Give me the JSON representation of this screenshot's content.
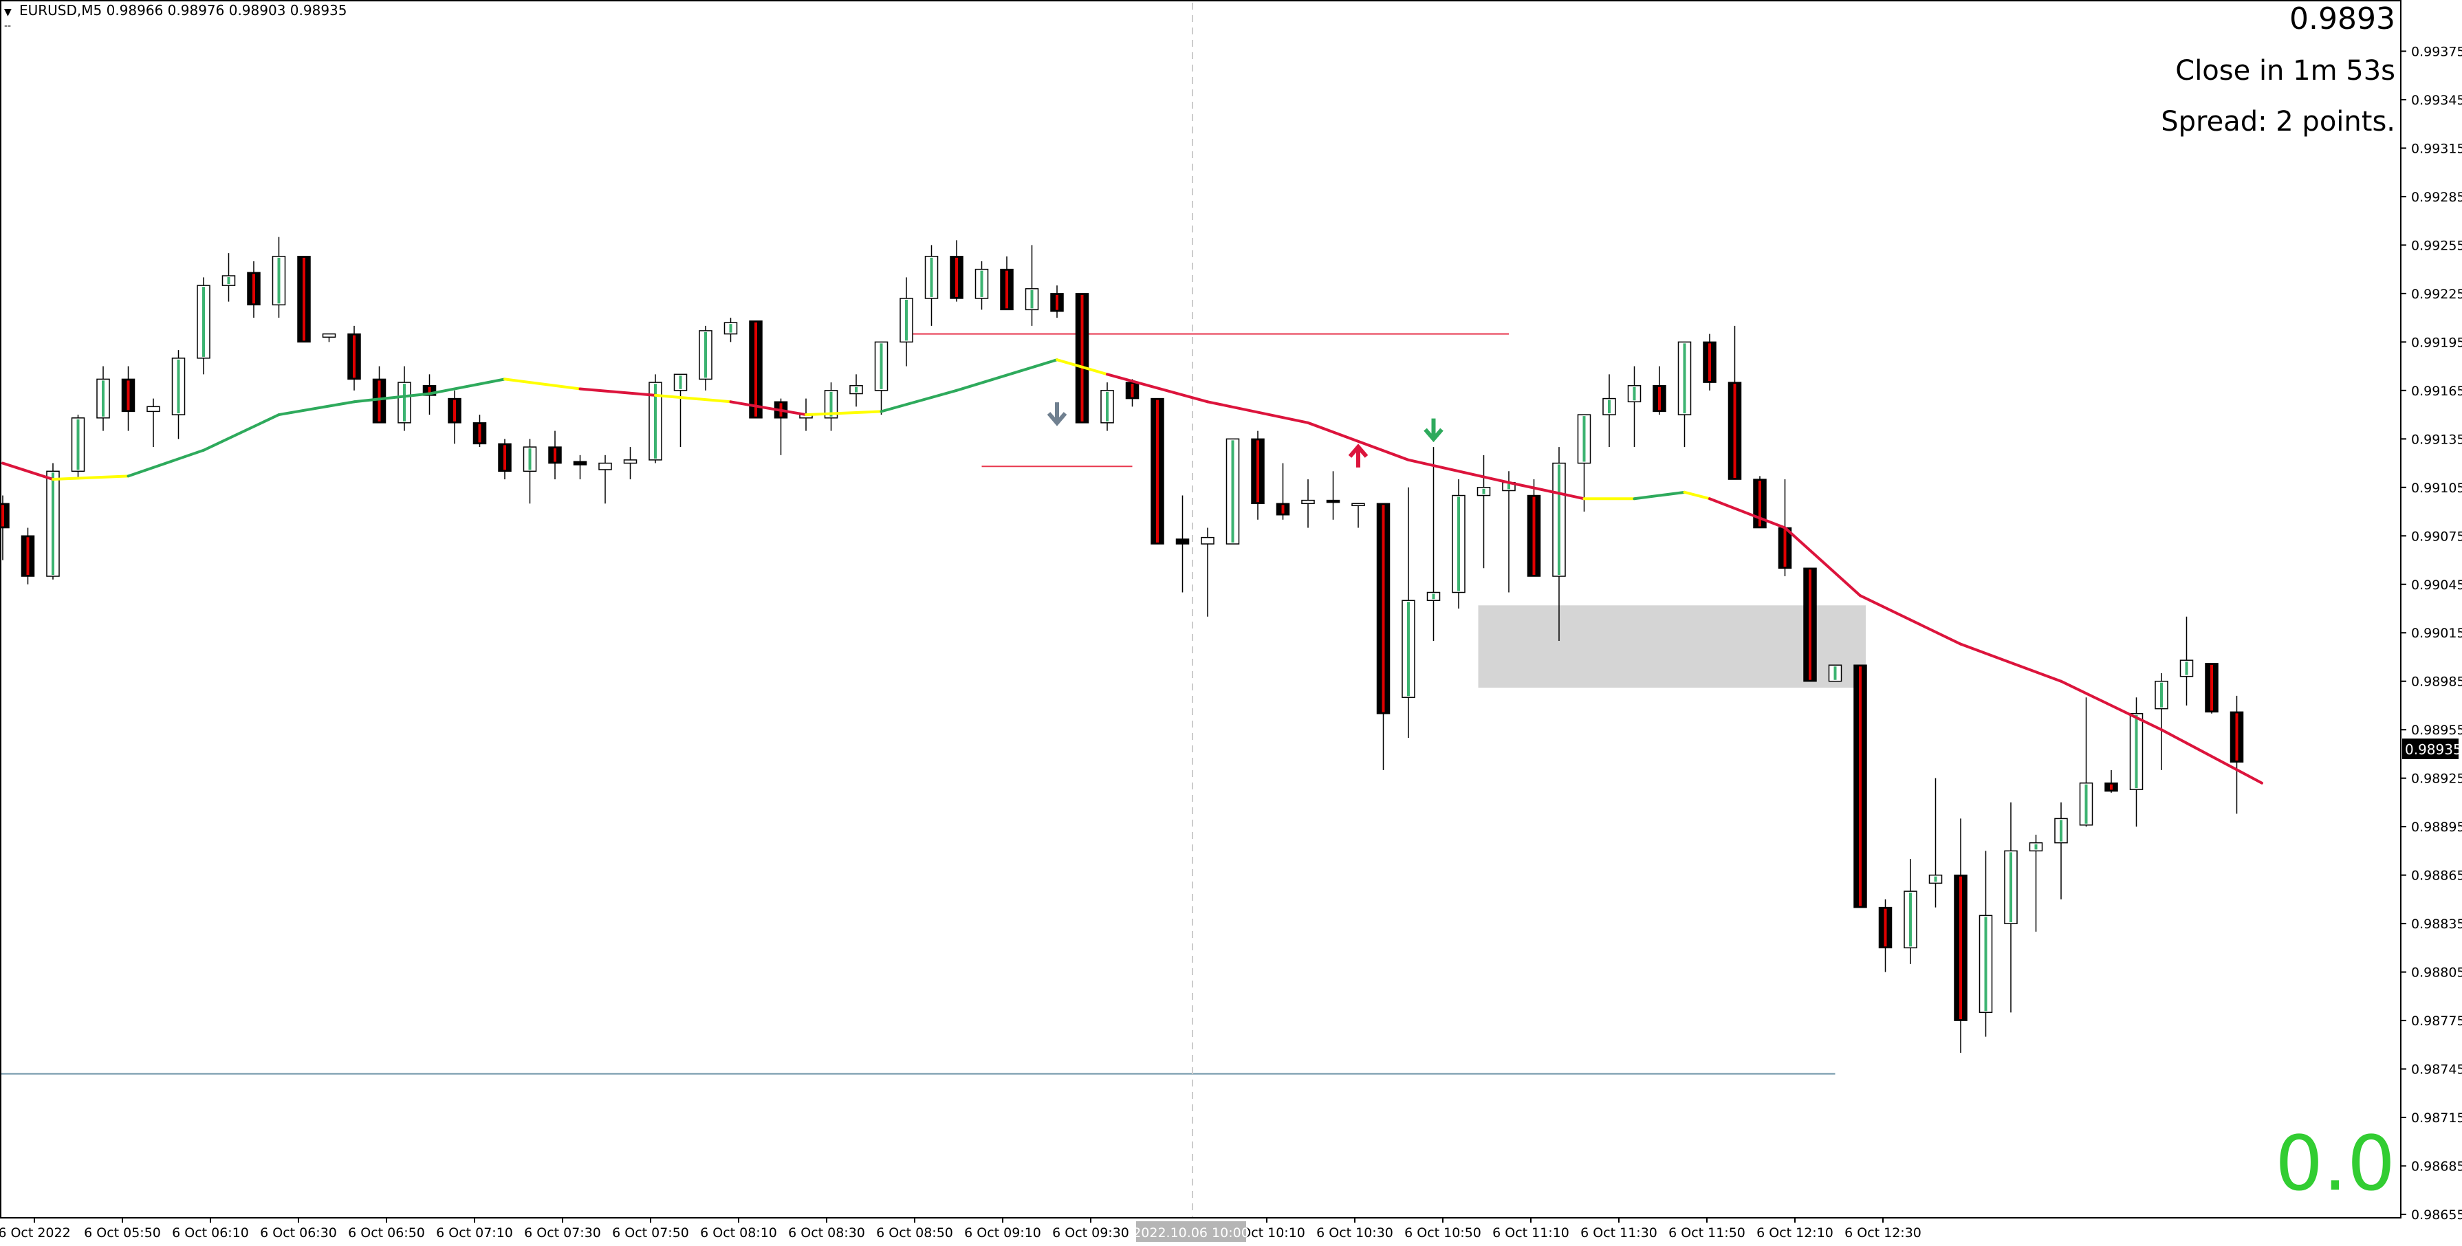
{
  "symbol_info": {
    "arrow": "▼",
    "text": "EURUSD,M5  0.98966 0.98976 0.98903 0.98935",
    "subtitle": "--"
  },
  "overlay": {
    "price": "0.9893",
    "close_timer": "Close in 1m 53s",
    "spread": "Spread: 2 points.",
    "big_value": "0.0"
  },
  "current_price_label": "0.98935",
  "crosshair_time_label": "2022.10.06 10:00",
  "colors": {
    "bull_body": "#ffffff",
    "bull_outline": "#3cb371",
    "bear_body": "#000000",
    "bear_line": "#e00000",
    "ma_up": "#2eaa5c",
    "ma_down": "#dc143c",
    "ma_flat": "#ffff00",
    "zone": "#d3d3d3",
    "support_line": "#6f95a8",
    "big_value": "#32cd32"
  },
  "chart_data": {
    "type": "candlestick",
    "y_range": [
      0.98655,
      0.99405
    ],
    "y_ticks": [
      "0.99375",
      "0.99345",
      "0.99315",
      "0.99285",
      "0.99255",
      "0.99225",
      "0.99195",
      "0.99165",
      "0.99135",
      "0.99105",
      "0.99075",
      "0.99045",
      "0.99015",
      "0.98985",
      "0.98955",
      "0.98925",
      "0.98895",
      "0.98865",
      "0.98835",
      "0.98805",
      "0.98775",
      "0.98745",
      "0.98715",
      "0.98685",
      "0.98655"
    ],
    "x_tick_labels": [
      "6 Oct 2022",
      "6 Oct 05:50",
      "6 Oct 06:10",
      "6 Oct 06:30",
      "6 Oct 06:50",
      "6 Oct 07:10",
      "6 Oct 07:30",
      "6 Oct 07:50",
      "6 Oct 08:10",
      "6 Oct 08:30",
      "6 Oct 08:50",
      "6 Oct 09:10",
      "6 Oct 09:30",
      "6 Oct 10:10",
      "6 Oct 10:30",
      "6 Oct 10:50",
      "6 Oct 11:10",
      "6 Oct 11:30",
      "6 Oct 11:50",
      "6 Oct 12:10",
      "6 Oct 12:30"
    ],
    "candles": [
      {
        "o": 0.99095,
        "h": 0.991,
        "l": 0.9906,
        "c": 0.9908
      },
      {
        "o": 0.99075,
        "h": 0.9908,
        "l": 0.99045,
        "c": 0.9905
      },
      {
        "o": 0.9905,
        "h": 0.9912,
        "l": 0.99048,
        "c": 0.99115
      },
      {
        "o": 0.99115,
        "h": 0.9915,
        "l": 0.9911,
        "c": 0.99148
      },
      {
        "o": 0.99148,
        "h": 0.9918,
        "l": 0.9914,
        "c": 0.99172
      },
      {
        "o": 0.99172,
        "h": 0.9918,
        "l": 0.9914,
        "c": 0.99152
      },
      {
        "o": 0.99152,
        "h": 0.9916,
        "l": 0.9913,
        "c": 0.99155
      },
      {
        "o": 0.9915,
        "h": 0.9919,
        "l": 0.99135,
        "c": 0.99185
      },
      {
        "o": 0.99185,
        "h": 0.99235,
        "l": 0.99175,
        "c": 0.9923
      },
      {
        "o": 0.9923,
        "h": 0.9925,
        "l": 0.9922,
        "c": 0.99236
      },
      {
        "o": 0.99238,
        "h": 0.99245,
        "l": 0.9921,
        "c": 0.99218
      },
      {
        "o": 0.99218,
        "h": 0.9926,
        "l": 0.9921,
        "c": 0.99248
      },
      {
        "o": 0.99248,
        "h": 0.99248,
        "l": 0.99195,
        "c": 0.99195
      },
      {
        "o": 0.99198,
        "h": 0.992,
        "l": 0.99195,
        "c": 0.992
      },
      {
        "o": 0.992,
        "h": 0.99205,
        "l": 0.99165,
        "c": 0.99172
      },
      {
        "o": 0.99172,
        "h": 0.9918,
        "l": 0.99145,
        "c": 0.99145
      },
      {
        "o": 0.99145,
        "h": 0.9918,
        "l": 0.9914,
        "c": 0.9917
      },
      {
        "o": 0.99168,
        "h": 0.99175,
        "l": 0.9915,
        "c": 0.99162
      },
      {
        "o": 0.9916,
        "h": 0.99165,
        "l": 0.99132,
        "c": 0.99145
      },
      {
        "o": 0.99145,
        "h": 0.9915,
        "l": 0.9913,
        "c": 0.99132
      },
      {
        "o": 0.99132,
        "h": 0.99135,
        "l": 0.9911,
        "c": 0.99115
      },
      {
        "o": 0.99115,
        "h": 0.99135,
        "l": 0.99095,
        "c": 0.9913
      },
      {
        "o": 0.9913,
        "h": 0.9914,
        "l": 0.9911,
        "c": 0.9912
      },
      {
        "o": 0.99121,
        "h": 0.99125,
        "l": 0.9911,
        "c": 0.99119
      },
      {
        "o": 0.99116,
        "h": 0.99125,
        "l": 0.99095,
        "c": 0.9912
      },
      {
        "o": 0.9912,
        "h": 0.9913,
        "l": 0.9911,
        "c": 0.99122
      },
      {
        "o": 0.99122,
        "h": 0.99175,
        "l": 0.9912,
        "c": 0.9917
      },
      {
        "o": 0.99165,
        "h": 0.99175,
        "l": 0.9913,
        "c": 0.99175
      },
      {
        "o": 0.99172,
        "h": 0.99205,
        "l": 0.99165,
        "c": 0.99202
      },
      {
        "o": 0.992,
        "h": 0.9921,
        "l": 0.99195,
        "c": 0.99207
      },
      {
        "o": 0.99208,
        "h": 0.99208,
        "l": 0.99148,
        "c": 0.99148
      },
      {
        "o": 0.99158,
        "h": 0.9916,
        "l": 0.99125,
        "c": 0.99148
      },
      {
        "o": 0.99148,
        "h": 0.9916,
        "l": 0.9914,
        "c": 0.9915
      },
      {
        "o": 0.99148,
        "h": 0.9917,
        "l": 0.9914,
        "c": 0.99165
      },
      {
        "o": 0.99163,
        "h": 0.99175,
        "l": 0.99155,
        "c": 0.99168
      },
      {
        "o": 0.99165,
        "h": 0.99195,
        "l": 0.9915,
        "c": 0.99195
      },
      {
        "o": 0.99195,
        "h": 0.99235,
        "l": 0.9918,
        "c": 0.99222
      },
      {
        "o": 0.99222,
        "h": 0.99255,
        "l": 0.99205,
        "c": 0.99248
      },
      {
        "o": 0.99248,
        "h": 0.99258,
        "l": 0.9922,
        "c": 0.99222
      },
      {
        "o": 0.99222,
        "h": 0.99245,
        "l": 0.99215,
        "c": 0.9924
      },
      {
        "o": 0.9924,
        "h": 0.99248,
        "l": 0.99215,
        "c": 0.99215
      },
      {
        "o": 0.99215,
        "h": 0.99255,
        "l": 0.99205,
        "c": 0.99228
      },
      {
        "o": 0.99225,
        "h": 0.9923,
        "l": 0.9921,
        "c": 0.99214
      },
      {
        "o": 0.99225,
        "h": 0.99225,
        "l": 0.99145,
        "c": 0.99145
      },
      {
        "o": 0.99145,
        "h": 0.9917,
        "l": 0.9914,
        "c": 0.99165
      },
      {
        "o": 0.9917,
        "h": 0.99172,
        "l": 0.99155,
        "c": 0.9916
      },
      {
        "o": 0.9916,
        "h": 0.9916,
        "l": 0.9907,
        "c": 0.9907
      },
      {
        "o": 0.99073,
        "h": 0.991,
        "l": 0.9904,
        "c": 0.9907
      },
      {
        "o": 0.9907,
        "h": 0.9908,
        "l": 0.99025,
        "c": 0.99074
      },
      {
        "o": 0.9907,
        "h": 0.99135,
        "l": 0.9907,
        "c": 0.99135
      },
      {
        "o": 0.99135,
        "h": 0.9914,
        "l": 0.99085,
        "c": 0.99095
      },
      {
        "o": 0.99095,
        "h": 0.9912,
        "l": 0.99085,
        "c": 0.99088
      },
      {
        "o": 0.99095,
        "h": 0.9911,
        "l": 0.9908,
        "c": 0.99097
      },
      {
        "o": 0.99097,
        "h": 0.99115,
        "l": 0.99085,
        "c": 0.99096
      },
      {
        "o": 0.99095,
        "h": 0.99095,
        "l": 0.9908,
        "c": 0.99095
      },
      {
        "o": 0.99095,
        "h": 0.99095,
        "l": 0.9893,
        "c": 0.98965
      },
      {
        "o": 0.98975,
        "h": 0.99105,
        "l": 0.9895,
        "c": 0.99035
      },
      {
        "o": 0.99035,
        "h": 0.9913,
        "l": 0.9901,
        "c": 0.9904
      },
      {
        "o": 0.9904,
        "h": 0.9911,
        "l": 0.9903,
        "c": 0.991
      },
      {
        "o": 0.991,
        "h": 0.99125,
        "l": 0.99055,
        "c": 0.99105
      },
      {
        "o": 0.99103,
        "h": 0.99115,
        "l": 0.9904,
        "c": 0.99108
      },
      {
        "o": 0.991,
        "h": 0.9911,
        "l": 0.9905,
        "c": 0.9905
      },
      {
        "o": 0.9905,
        "h": 0.9913,
        "l": 0.9901,
        "c": 0.9912
      },
      {
        "o": 0.9912,
        "h": 0.9915,
        "l": 0.9909,
        "c": 0.9915
      },
      {
        "o": 0.9915,
        "h": 0.99175,
        "l": 0.9913,
        "c": 0.9916
      },
      {
        "o": 0.99158,
        "h": 0.9918,
        "l": 0.9913,
        "c": 0.99168
      },
      {
        "o": 0.99168,
        "h": 0.9918,
        "l": 0.9915,
        "c": 0.99152
      },
      {
        "o": 0.9915,
        "h": 0.99195,
        "l": 0.9913,
        "c": 0.99195
      },
      {
        "o": 0.99195,
        "h": 0.992,
        "l": 0.99165,
        "c": 0.9917
      },
      {
        "o": 0.9917,
        "h": 0.99205,
        "l": 0.9911,
        "c": 0.9911
      },
      {
        "o": 0.9911,
        "h": 0.99112,
        "l": 0.9908,
        "c": 0.9908
      },
      {
        "o": 0.9908,
        "h": 0.9911,
        "l": 0.9905,
        "c": 0.99055
      },
      {
        "o": 0.99055,
        "h": 0.99055,
        "l": 0.98985,
        "c": 0.98985
      },
      {
        "o": 0.98985,
        "h": 0.98995,
        "l": 0.98985,
        "c": 0.98995
      },
      {
        "o": 0.98995,
        "h": 0.98995,
        "l": 0.98845,
        "c": 0.98845
      },
      {
        "o": 0.98845,
        "h": 0.9885,
        "l": 0.98805,
        "c": 0.9882
      },
      {
        "o": 0.9882,
        "h": 0.98875,
        "l": 0.9881,
        "c": 0.98855
      },
      {
        "o": 0.9886,
        "h": 0.98925,
        "l": 0.98845,
        "c": 0.98865
      },
      {
        "o": 0.98865,
        "h": 0.989,
        "l": 0.98755,
        "c": 0.98775
      },
      {
        "o": 0.9878,
        "h": 0.9888,
        "l": 0.98765,
        "c": 0.9884
      },
      {
        "o": 0.98835,
        "h": 0.9891,
        "l": 0.9878,
        "c": 0.9888
      },
      {
        "o": 0.9888,
        "h": 0.9889,
        "l": 0.9883,
        "c": 0.98885
      },
      {
        "o": 0.98885,
        "h": 0.9891,
        "l": 0.9885,
        "c": 0.989
      },
      {
        "o": 0.98896,
        "h": 0.98975,
        "l": 0.98895,
        "c": 0.98922
      },
      {
        "o": 0.98922,
        "h": 0.9893,
        "l": 0.98916,
        "c": 0.98917
      },
      {
        "o": 0.98918,
        "h": 0.98975,
        "l": 0.98895,
        "c": 0.98965
      },
      {
        "o": 0.98968,
        "h": 0.9899,
        "l": 0.9893,
        "c": 0.98985
      },
      {
        "o": 0.98988,
        "h": 0.99025,
        "l": 0.9897,
        "c": 0.98998
      },
      {
        "o": 0.98996,
        "h": 0.98996,
        "l": 0.98965,
        "c": 0.98966
      },
      {
        "o": 0.98966,
        "h": 0.98976,
        "l": 0.98903,
        "c": 0.98935
      }
    ],
    "moving_average": [
      {
        "i": 0,
        "v": 0.9912,
        "t": "down"
      },
      {
        "i": 2,
        "v": 0.9911,
        "t": "flat"
      },
      {
        "i": 5,
        "v": 0.99112,
        "t": "up"
      },
      {
        "i": 8,
        "v": 0.99128,
        "t": "up"
      },
      {
        "i": 11,
        "v": 0.9915,
        "t": "up"
      },
      {
        "i": 14,
        "v": 0.99158,
        "t": "up"
      },
      {
        "i": 17,
        "v": 0.99163,
        "t": "up"
      },
      {
        "i": 20,
        "v": 0.99172,
        "t": "flat"
      },
      {
        "i": 23,
        "v": 0.99166,
        "t": "down"
      },
      {
        "i": 26,
        "v": 0.99162,
        "t": "flat"
      },
      {
        "i": 29,
        "v": 0.99158,
        "t": "down"
      },
      {
        "i": 32,
        "v": 0.9915,
        "t": "flat"
      },
      {
        "i": 35,
        "v": 0.99152,
        "t": "up"
      },
      {
        "i": 38,
        "v": 0.99165,
        "t": "up"
      },
      {
        "i": 42,
        "v": 0.99184,
        "t": "flat"
      },
      {
        "i": 44,
        "v": 0.99175,
        "t": "down"
      },
      {
        "i": 48,
        "v": 0.99158,
        "t": "down"
      },
      {
        "i": 52,
        "v": 0.99145,
        "t": "down"
      },
      {
        "i": 56,
        "v": 0.99122,
        "t": "down"
      },
      {
        "i": 60,
        "v": 0.99108,
        "t": "down"
      },
      {
        "i": 63,
        "v": 0.99098,
        "t": "flat"
      },
      {
        "i": 65,
        "v": 0.99098,
        "t": "up"
      },
      {
        "i": 67,
        "v": 0.99102,
        "t": "flat"
      },
      {
        "i": 68,
        "v": 0.99098,
        "t": "down"
      },
      {
        "i": 71,
        "v": 0.9908,
        "t": "down"
      },
      {
        "i": 74,
        "v": 0.99038,
        "t": "down"
      },
      {
        "i": 78,
        "v": 0.99008,
        "t": "down"
      },
      {
        "i": 82,
        "v": 0.98985,
        "t": "down"
      },
      {
        "i": 86,
        "v": 0.98955,
        "t": "down"
      },
      {
        "i": 90,
        "v": 0.98922,
        "t": "down"
      }
    ],
    "horizontal_lines": [
      {
        "from": 36,
        "to": 60,
        "price": 0.992,
        "color": "#e8384f"
      },
      {
        "from": 39,
        "to": 45,
        "price": 0.99118,
        "color": "#e8384f"
      },
      {
        "from": 0,
        "to": 73,
        "price": 0.98742,
        "color": "#6f95a8"
      }
    ],
    "zones": [
      {
        "from": 59,
        "to": 74,
        "top": 0.99032,
        "bottom": 0.98981
      }
    ],
    "arrows": [
      {
        "index": 42,
        "price": 0.9915,
        "dir": "down",
        "color": "#708090"
      },
      {
        "index": 54,
        "price": 0.99125,
        "dir": "up",
        "color": "#dc143c"
      },
      {
        "index": 57,
        "price": 0.9914,
        "dir": "down",
        "color": "#2eaa5c"
      }
    ]
  }
}
